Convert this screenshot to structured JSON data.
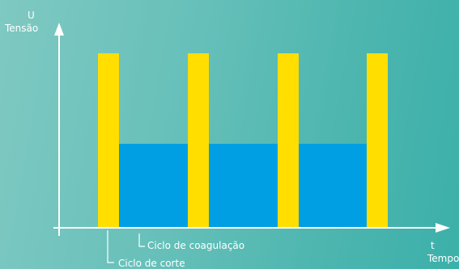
{
  "axes": {
    "y_symbol": "U",
    "y_label": "Tensão",
    "x_symbol": "t",
    "x_label": "Tempo"
  },
  "callouts": {
    "coag_label": "Ciclo de coagulação",
    "cut_label": "Ciclo de corte"
  },
  "colors": {
    "cut_pulse": "#ffde00",
    "coag_pulse": "#009fe3",
    "axis": "#ffffff"
  }
}
